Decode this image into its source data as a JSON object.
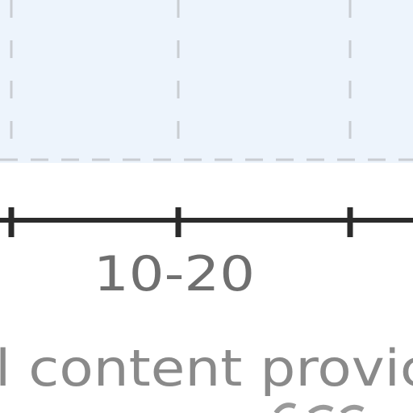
{
  "chart_data": {
    "type": "bar",
    "categories": [
      "10-20"
    ],
    "xlabel": "l content provic",
    "ylabel": "",
    "title": "",
    "grid": true,
    "colors": {
      "plot_background": "#edf4fc",
      "grid": "#c9cdd2",
      "axis": "#2b2b2b",
      "tick_label": "#6f6f6f",
      "axis_label": "#8a8a8a"
    }
  }
}
